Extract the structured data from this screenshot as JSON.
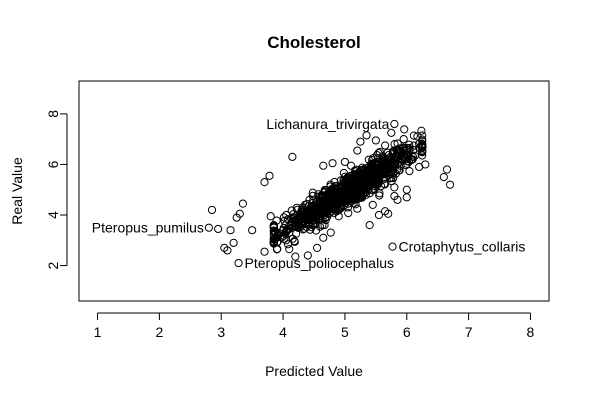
{
  "chart_data": {
    "type": "scatter",
    "title": "Cholesterol",
    "xlabel": "Predicted Value",
    "ylabel": "Real Value",
    "xlim": [
      0.7,
      8.3
    ],
    "ylim": [
      0.6,
      9.3
    ],
    "xticks": [
      1,
      2,
      3,
      4,
      5,
      6,
      7,
      8
    ],
    "yticks": [
      2,
      4,
      6,
      8
    ],
    "annotations": [
      {
        "label": "Lichanura_trivirgata",
        "x": 5.8,
        "y": 7.6,
        "pos": "left"
      },
      {
        "label": "Pteropus_pumilus",
        "x": 2.8,
        "y": 3.5,
        "pos": "left"
      },
      {
        "label": "Crotaphytus_collaris",
        "x": 5.77,
        "y": 2.75,
        "pos": "right"
      },
      {
        "label": "Pteropus_poliocephalus",
        "x": 3.28,
        "y": 2.1,
        "pos": "right"
      }
    ],
    "cloud": {
      "n": 900,
      "seed": 12345,
      "x_mean": 5.05,
      "x_sd": 0.55,
      "slope": 1.55,
      "y_at_mean": 4.95,
      "noise_sd": 0.32
    },
    "points": [
      [
        5.8,
        7.6
      ],
      [
        2.8,
        3.5
      ],
      [
        5.77,
        2.75
      ],
      [
        3.28,
        2.1
      ],
      [
        2.85,
        4.2
      ],
      [
        2.95,
        3.45
      ],
      [
        3.05,
        2.7
      ],
      [
        3.1,
        2.6
      ],
      [
        3.15,
        3.4
      ],
      [
        3.2,
        2.9
      ],
      [
        3.25,
        3.9
      ],
      [
        3.3,
        4.05
      ],
      [
        3.35,
        4.45
      ],
      [
        3.5,
        3.4
      ],
      [
        3.7,
        2.55
      ],
      [
        3.7,
        5.3
      ],
      [
        3.78,
        5.55
      ],
      [
        3.8,
        3.95
      ],
      [
        3.85,
        3.6
      ],
      [
        4.05,
        3.0
      ],
      [
        4.1,
        2.65
      ],
      [
        4.15,
        6.3
      ],
      [
        4.3,
        3.7
      ],
      [
        4.4,
        2.4
      ],
      [
        4.55,
        2.7
      ],
      [
        4.65,
        3.1
      ],
      [
        4.65,
        5.95
      ],
      [
        4.7,
        4.5
      ],
      [
        4.8,
        6.05
      ],
      [
        5.0,
        6.1
      ],
      [
        5.1,
        5.95
      ],
      [
        5.2,
        4.25
      ],
      [
        5.2,
        6.55
      ],
      [
        5.25,
        6.9
      ],
      [
        5.35,
        7.15
      ],
      [
        5.4,
        3.6
      ],
      [
        5.5,
        6.95
      ],
      [
        5.55,
        4.0
      ],
      [
        5.6,
        6.2
      ],
      [
        5.65,
        6.75
      ],
      [
        5.7,
        4.05
      ],
      [
        5.75,
        7.25
      ],
      [
        5.85,
        4.6
      ],
      [
        5.9,
        6.6
      ],
      [
        5.95,
        7.0
      ],
      [
        6.0,
        5.0
      ],
      [
        6.1,
        6.3
      ],
      [
        6.2,
        5.9
      ],
      [
        6.3,
        6.0
      ],
      [
        6.6,
        5.5
      ],
      [
        6.65,
        5.8
      ],
      [
        6.7,
        5.2
      ],
      [
        5.05,
        4.3
      ],
      [
        5.45,
        4.4
      ],
      [
        5.65,
        4.15
      ],
      [
        4.9,
        3.95
      ],
      [
        5.8,
        4.75
      ],
      [
        6.0,
        4.7
      ]
    ]
  }
}
